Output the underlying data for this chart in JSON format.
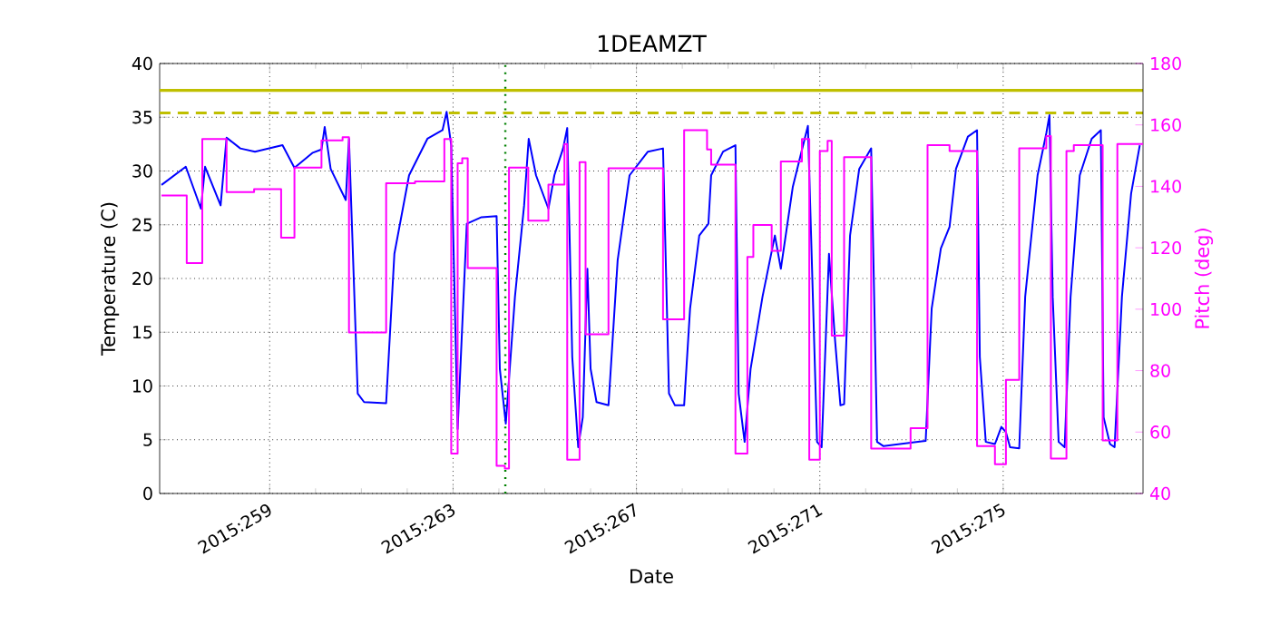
{
  "chart_data": {
    "type": "line",
    "title": "1DEAMZT",
    "xlabel": "Date",
    "ylabel": "Temperature (C)",
    "y2label": "Pitch (deg)",
    "xlim": [
      "2015-09-13T14:24",
      "2015-10-05T01:12"
    ],
    "ylim": [
      0,
      40
    ],
    "y2lim": [
      40,
      180
    ],
    "xticks": [
      {
        "value": "2015-09-16",
        "label": "2015:259"
      },
      {
        "value": "2015-09-20",
        "label": "2015:263"
      },
      {
        "value": "2015-09-24",
        "label": "2015:267"
      },
      {
        "value": "2015-09-28",
        "label": "2015:271"
      },
      {
        "value": "2015-10-02",
        "label": "2015:275"
      }
    ],
    "yticks": [
      0,
      5,
      10,
      15,
      20,
      25,
      30,
      35,
      40
    ],
    "y2ticks": [
      40,
      60,
      80,
      100,
      120,
      140,
      160,
      180
    ],
    "grid": true,
    "series": [
      {
        "color": "#0000ff",
        "x": [
          "2015-09-13T15:22",
          "2015-09-14T04:05",
          "2015-09-14T12:00",
          "2015-09-14T14:10",
          "2015-09-14T22:19",
          "2015-09-15T01:26",
          "2015-09-15T08:38",
          "2015-09-15T16:19",
          "2015-09-16T06:43",
          "2015-09-16T12:58",
          "2015-09-16T22:34",
          "2015-09-17T03:07",
          "2015-09-17T04:48",
          "2015-09-17T07:55",
          "2015-09-17T15:50",
          "2015-09-17T17:31",
          "2015-09-17T22:05",
          "2015-09-18T01:26",
          "2015-09-18T12:58",
          "2015-09-18T17:17",
          "2015-09-19T00:58",
          "2015-09-19T10:34",
          "2015-09-19T18:29",
          "2015-09-19T20:38",
          "2015-09-19T23:02",
          "2015-09-20T02:24",
          "2015-09-20T07:12",
          "2015-09-20T14:53",
          "2015-09-20T22:48",
          "2015-09-21T00:29",
          "2015-09-21T03:36",
          "2015-09-21T08:24",
          "2015-09-21T13:12",
          "2015-09-21T15:36",
          "2015-09-21T19:26",
          "2015-09-22T01:55",
          "2015-09-22T05:02",
          "2015-09-22T09:36",
          "2015-09-22T11:46",
          "2015-09-22T14:24",
          "2015-09-22T17:31",
          "2015-09-22T19:55",
          "2015-09-22T22:19",
          "2015-09-23T00:00",
          "2015-09-23T03:07",
          "2015-09-23T09:22",
          "2015-09-23T14:10",
          "2015-09-23T20:24",
          "2015-09-24T06:00",
          "2015-09-24T13:55",
          "2015-09-24T17:02",
          "2015-09-24T20:10",
          "2015-09-25T00:58",
          "2015-09-25T04:05",
          "2015-09-25T08:53",
          "2015-09-25T13:41",
          "2015-09-25T15:07",
          "2015-09-25T21:22",
          "2015-09-26T03:50",
          "2015-09-26T05:31",
          "2015-09-26T08:38",
          "2015-09-26T11:46",
          "2015-09-26T18:00",
          "2015-09-27T00:29",
          "2015-09-27T03:36",
          "2015-09-27T09:50",
          "2015-09-27T16:05",
          "2015-09-27T17:46",
          "2015-09-27T19:26",
          "2015-09-27T22:34",
          "2015-09-28T00:58",
          "2015-09-28T04:48",
          "2015-09-28T07:55",
          "2015-09-28T10:48",
          "2015-09-28T12:43",
          "2015-09-28T15:50",
          "2015-09-28T20:38",
          "2015-09-29T02:53",
          "2015-09-29T06:00",
          "2015-09-29T09:22",
          "2015-09-30T07:26",
          "2015-09-30T10:34",
          "2015-09-30T15:22",
          "2015-09-30T19:55",
          "2015-09-30T23:17",
          "2015-10-01T05:31",
          "2015-10-01T10:19",
          "2015-10-01T11:46",
          "2015-10-01T14:53",
          "2015-10-01T19:41",
          "2015-10-01T23:02",
          "2015-10-02T01:26",
          "2015-10-02T03:36",
          "2015-10-02T08:24",
          "2015-10-02T11:31",
          "2015-10-02T18:00",
          "2015-10-02T22:34",
          "2015-10-03T00:14",
          "2015-10-03T01:55",
          "2015-10-03T05:02",
          "2015-10-03T08:10",
          "2015-10-03T11:17",
          "2015-10-03T16:05",
          "2015-10-03T22:19",
          "2015-10-04T03:07",
          "2015-10-04T04:34",
          "2015-10-04T07:55",
          "2015-10-04T10:19",
          "2015-10-04T14:10",
          "2015-10-04T18:58",
          "2015-10-04T23:31"
        ],
        "values": [
          28.7,
          30.4,
          26.5,
          30.4,
          26.8,
          33.1,
          32.1,
          31.8,
          32.4,
          30.3,
          31.7,
          32.0,
          34.1,
          30.2,
          27.3,
          33.0,
          9.3,
          8.5,
          8.4,
          22.3,
          29.6,
          33.0,
          33.8,
          35.5,
          32.4,
          6.0,
          25.1,
          25.7,
          25.8,
          11.6,
          6.5,
          18.3,
          26.8,
          33.0,
          29.6,
          26.5,
          29.6,
          32.1,
          34.0,
          12.7,
          4.3,
          7.1,
          20.9,
          11.6,
          8.5,
          8.2,
          21.7,
          29.6,
          31.8,
          32.1,
          9.3,
          8.2,
          8.2,
          17.2,
          24.0,
          25.1,
          29.6,
          31.8,
          32.4,
          9.3,
          4.8,
          11.6,
          18.3,
          24.0,
          20.9,
          28.5,
          33.0,
          34.2,
          24.0,
          4.8,
          4.3,
          22.3,
          14.4,
          8.2,
          8.3,
          24.0,
          30.2,
          32.1,
          4.8,
          4.4,
          4.9,
          17.2,
          22.8,
          24.8,
          30.2,
          33.2,
          33.8,
          12.7,
          4.8,
          4.6,
          6.2,
          5.7,
          4.3,
          4.2,
          18.3,
          29.6,
          33.5,
          35.2,
          18.3,
          4.8,
          4.3,
          18.3,
          29.6,
          33.0,
          33.8,
          7.1,
          4.6,
          4.3,
          18.3,
          27.9,
          32.4
        ]
      },
      {
        "type": "step",
        "axis": "y2",
        "color": "#ff00ff",
        "x": [
          "2015-09-13T15:22",
          "2015-09-14T04:34",
          "2015-09-14T12:43",
          "2015-09-15T01:26",
          "2015-09-15T15:50",
          "2015-09-16T06:00",
          "2015-09-16T12:58",
          "2015-09-17T03:07",
          "2015-09-17T14:10",
          "2015-09-17T17:31",
          "2015-09-18T12:58",
          "2015-09-19T04:05",
          "2015-09-19T19:26",
          "2015-09-19T23:02",
          "2015-09-20T02:24",
          "2015-09-20T04:48",
          "2015-09-20T07:41",
          "2015-09-20T22:48",
          "2015-09-21T03:07",
          "2015-09-21T05:17",
          "2015-09-21T15:22",
          "2015-09-22T01:55",
          "2015-09-22T10:19",
          "2015-09-22T11:46",
          "2015-09-22T18:14",
          "2015-09-22T21:22",
          "2015-09-23T09:22",
          "2015-09-24T13:55",
          "2015-09-25T00:58",
          "2015-09-25T12:58",
          "2015-09-25T15:07",
          "2015-09-26T03:50",
          "2015-09-26T10:05",
          "2015-09-26T13:12",
          "2015-09-26T22:48",
          "2015-09-27T03:36",
          "2015-09-27T14:38",
          "2015-09-27T18:29",
          "2015-09-28T00:00",
          "2015-09-28T04:05",
          "2015-09-28T06:14",
          "2015-09-28T12:43",
          "2015-09-29T02:53",
          "2015-09-29T23:31",
          "2015-09-30T08:24",
          "2015-09-30T19:55",
          "2015-10-01T10:19",
          "2015-10-01T19:41",
          "2015-10-02T01:26",
          "2015-10-02T08:24",
          "2015-10-02T22:34",
          "2015-10-03T00:58",
          "2015-10-03T09:07",
          "2015-10-03T12:58",
          "2015-10-04T04:05",
          "2015-10-04T11:46",
          "2015-10-05T01:12"
        ],
        "values": [
          137.0,
          115.0,
          155.4,
          138.1,
          139.1,
          123.3,
          146.1,
          155.0,
          156.0,
          92.4,
          141.0,
          141.6,
          155.4,
          53.0,
          147.5,
          149.1,
          113.4,
          49.0,
          48.1,
          146.1,
          128.8,
          140.6,
          153.8,
          51.0,
          147.9,
          91.8,
          145.9,
          96.7,
          158.3,
          152.0,
          147.1,
          53.0,
          117.0,
          127.4,
          119.0,
          148.1,
          155.4,
          51.0,
          151.5,
          154.8,
          91.4,
          149.5,
          54.6,
          61.3,
          153.4,
          151.5,
          55.4,
          49.5,
          77.0,
          152.4,
          156.4,
          51.4,
          151.5,
          153.4,
          57.3,
          153.8,
          153.8
        ]
      }
    ],
    "ref_lines": [
      {
        "axis": "y",
        "value": 37.5,
        "color": "#bfbf00",
        "line_style": "solid"
      },
      {
        "axis": "y",
        "value": 35.4,
        "color": "#bfbf00",
        "line_style": "dashed"
      },
      {
        "axis": "x",
        "value": "2015-09-21T03:22",
        "color": "#008000",
        "line_style": "dotted"
      }
    ]
  }
}
